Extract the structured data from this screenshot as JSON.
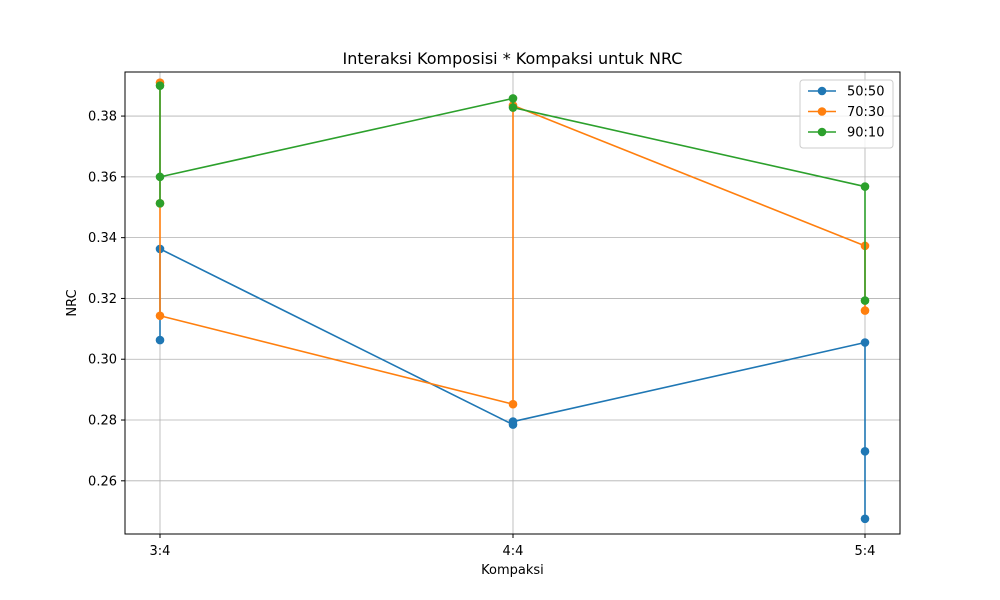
{
  "chart_data": {
    "type": "line",
    "title": "Interaksi Komposisi * Kompaksi untuk NRC",
    "xlabel": "Kompaksi",
    "ylabel": "NRC",
    "categories": [
      "3:4",
      "4:4",
      "5:4"
    ],
    "ylim": [
      0.2425,
      0.3945
    ],
    "yticks": [
      0.26,
      0.28,
      0.3,
      0.32,
      0.34,
      0.36,
      0.38
    ],
    "ytick_labels": [
      "0.26",
      "0.28",
      "0.30",
      "0.32",
      "0.34",
      "0.36",
      "0.38"
    ],
    "grid": true,
    "legend_position": "top-right",
    "series": [
      {
        "name": "50:50",
        "color": "#1f77b4",
        "points": [
          {
            "x": "3:4",
            "y": 0.3063
          },
          {
            "x": "3:4",
            "y": 0.3363
          },
          {
            "x": "4:4",
            "y": 0.2785
          },
          {
            "x": "4:4",
            "y": 0.2795
          },
          {
            "x": "5:4",
            "y": 0.3055
          },
          {
            "x": "5:4",
            "y": 0.2697
          },
          {
            "x": "5:4",
            "y": 0.2475
          }
        ]
      },
      {
        "name": "70:30",
        "color": "#ff7f0e",
        "points": [
          {
            "x": "3:4",
            "y": 0.391
          },
          {
            "x": "3:4",
            "y": 0.3513
          },
          {
            "x": "3:4",
            "y": 0.3143
          },
          {
            "x": "4:4",
            "y": 0.2852
          },
          {
            "x": "4:4",
            "y": 0.3835
          },
          {
            "x": "5:4",
            "y": 0.3373
          },
          {
            "x": "5:4",
            "y": 0.316
          }
        ]
      },
      {
        "name": "90:10",
        "color": "#2ca02c",
        "points": [
          {
            "x": "3:4",
            "y": 0.3513
          },
          {
            "x": "3:4",
            "y": 0.39
          },
          {
            "x": "3:4",
            "y": 0.36
          },
          {
            "x": "4:4",
            "y": 0.3858
          },
          {
            "x": "4:4",
            "y": 0.3828
          },
          {
            "x": "5:4",
            "y": 0.3568
          },
          {
            "x": "5:4",
            "y": 0.3193
          }
        ]
      }
    ]
  }
}
